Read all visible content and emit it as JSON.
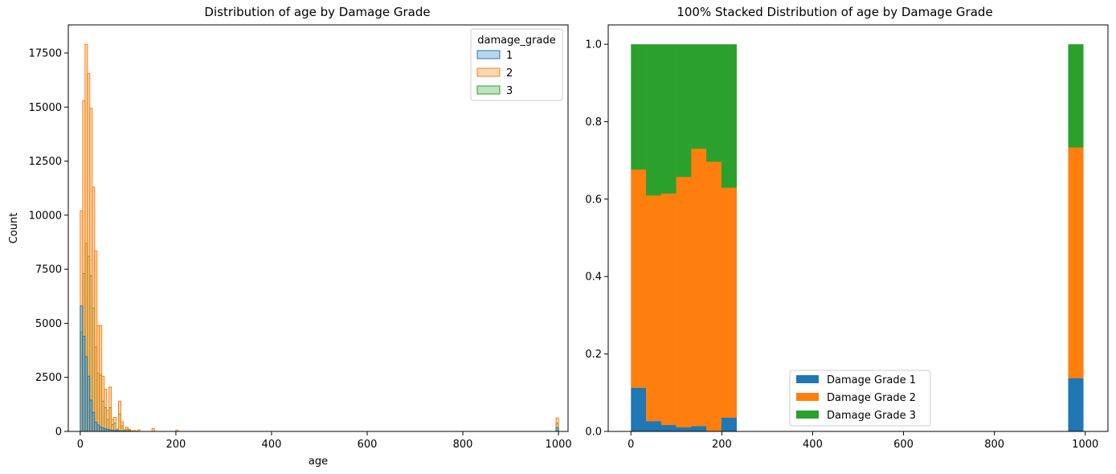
{
  "chart_data": [
    {
      "type": "histogram",
      "title": "Distribution of age by Damage Grade",
      "xlabel": "age",
      "ylabel": "Count",
      "xlim": [
        -25,
        1020
      ],
      "ylim": [
        0,
        18800
      ],
      "xticks": [
        "0",
        "200",
        "400",
        "600",
        "800",
        "1000"
      ],
      "yticks": [
        "0",
        "2500",
        "5000",
        "7500",
        "10000",
        "12500",
        "15000",
        "17500"
      ],
      "bin_width": 5,
      "legend": {
        "title": "damage_grade",
        "position": "top-right",
        "entries": [
          "1",
          "2",
          "3"
        ]
      },
      "series": [
        {
          "name": "1",
          "color": "#1f77b4",
          "x": [
            0,
            5,
            10,
            15,
            20,
            25,
            30,
            35,
            40,
            45,
            50,
            55,
            60,
            65,
            70,
            75,
            80,
            85,
            90,
            95,
            100,
            995
          ],
          "values": [
            5800,
            4400,
            3450,
            2550,
            1450,
            880,
            420,
            300,
            210,
            160,
            120,
            100,
            70,
            55,
            45,
            35,
            30,
            25,
            20,
            15,
            15,
            170
          ]
        },
        {
          "name": "2",
          "color": "#ff7f0e",
          "x": [
            0,
            5,
            10,
            15,
            20,
            25,
            30,
            35,
            40,
            45,
            50,
            55,
            60,
            65,
            70,
            75,
            80,
            85,
            90,
            95,
            100,
            105,
            110,
            115,
            120,
            150,
            200,
            995
          ],
          "values": [
            10200,
            15300,
            17900,
            16550,
            14950,
            11300,
            8350,
            4900,
            4900,
            2550,
            1950,
            980,
            2050,
            550,
            650,
            120,
            1400,
            450,
            80,
            200,
            100,
            30,
            40,
            20,
            70,
            130,
            60,
            620
          ]
        },
        {
          "name": "3",
          "color": "#2ca02c",
          "x": [
            0,
            5,
            10,
            15,
            20,
            25,
            30,
            35,
            40,
            45,
            50,
            55,
            60,
            65,
            70,
            75,
            80,
            85,
            90,
            95,
            100,
            995
          ],
          "values": [
            4600,
            7300,
            8700,
            8100,
            7200,
            5700,
            3900,
            2700,
            2600,
            1400,
            1100,
            550,
            1100,
            320,
            380,
            70,
            800,
            250,
            50,
            100,
            60,
            380
          ]
        }
      ]
    },
    {
      "type": "bar",
      "stacked": "percent",
      "title": "100% Stacked Distribution of age by Damage Grade",
      "xlim": [
        -50,
        1050
      ],
      "ylim": [
        0,
        1.05
      ],
      "xticks": [
        "0",
        "200",
        "400",
        "600",
        "800",
        "1000"
      ],
      "yticks": [
        "0.0",
        "0.2",
        "0.4",
        "0.6",
        "0.8",
        "1.0"
      ],
      "legend": {
        "position": "lower-center",
        "entries": [
          "Damage Grade 1",
          "Damage Grade 2",
          "Damage Grade 3"
        ]
      },
      "bins": [
        {
          "x0": 0,
          "x1": 33.2,
          "g1": 0.113,
          "g2": 0.564
        },
        {
          "x0": 33.2,
          "x1": 66.4,
          "g1": 0.027,
          "g2": 0.583
        },
        {
          "x0": 66.4,
          "x1": 99.6,
          "g1": 0.017,
          "g2": 0.598
        },
        {
          "x0": 99.6,
          "x1": 132.8,
          "g1": 0.011,
          "g2": 0.647
        },
        {
          "x0": 132.8,
          "x1": 166,
          "g1": 0.014,
          "g2": 0.717
        },
        {
          "x0": 166,
          "x1": 199.2,
          "g1": 0.002,
          "g2": 0.695
        },
        {
          "x0": 199.2,
          "x1": 232.4,
          "g1": 0.036,
          "g2": 0.594
        },
        {
          "x0": 962.4,
          "x1": 995.6,
          "g1": 0.138,
          "g2": 0.596
        }
      ],
      "series": [
        {
          "name": "Damage Grade 1",
          "color": "#1f77b4"
        },
        {
          "name": "Damage Grade 2",
          "color": "#ff7f0e"
        },
        {
          "name": "Damage Grade 3",
          "color": "#2ca02c"
        }
      ]
    }
  ]
}
